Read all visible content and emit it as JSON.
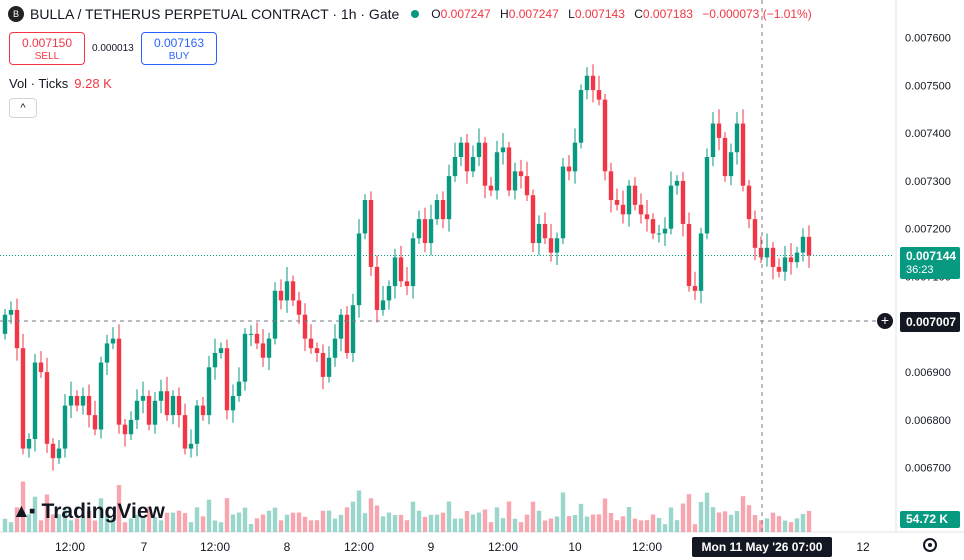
{
  "header": {
    "symbol_logo": "B",
    "title": "BULLA / TETHERUS PERPETUAL CONTRACT · 1h · Gate",
    "ohlc": [
      {
        "k": "O",
        "v": "0.007247"
      },
      {
        "k": "H",
        "v": "0.007247"
      },
      {
        "k": "L",
        "v": "0.007143"
      },
      {
        "k": "C",
        "v": "0.007183"
      }
    ],
    "change": "−0.000073 (−1.01%)"
  },
  "trade": {
    "sell_price": "0.007150",
    "sell_label": "SELL",
    "spread": "0.000013",
    "buy_price": "0.007163",
    "buy_label": "BUY"
  },
  "volume_legend": {
    "label": "Vol · Ticks",
    "value": "9.28 K"
  },
  "collapse_icon": "^",
  "branding": {
    "mark": "▲▪",
    "name": "TradingView"
  },
  "price_scale": {
    "ticks": [
      "0.007600",
      "0.007500",
      "0.007400",
      "0.007300",
      "0.007200",
      "0.007100",
      "0.006900",
      "0.006800",
      "0.006700"
    ],
    "last_price": "0.007144",
    "countdown": "36:23",
    "crosshair_price": "0.007007",
    "volume_last": "54.72 K"
  },
  "time_scale": {
    "ticks": [
      "12:00",
      "7",
      "12:00",
      "8",
      "12:00",
      "9",
      "12:00",
      "10",
      "12:00",
      "12"
    ],
    "crosshair_time": "Mon 11 May '26  07:00"
  },
  "colors": {
    "up": "#089981",
    "down": "#f23645",
    "up_volume": "#9bd6cd",
    "down_volume": "#f7a5ae"
  },
  "chart_data": {
    "type": "candlestick",
    "title": "BULLA / TETHERUS PERPETUAL CONTRACT",
    "interval": "1h",
    "exchange": "Gate",
    "ylim": [
      0.00663,
      0.00763
    ],
    "y_ticks": [
      0.0076,
      0.0075,
      0.0074,
      0.0073,
      0.0072,
      0.0071,
      0.0069,
      0.0068,
      0.0067
    ],
    "last_price": 0.007144,
    "crosshair": {
      "price": 0.007007,
      "time": "Mon 11 May '26 07:00"
    },
    "candles_close": [
      0.00702,
      0.00703,
      0.00695,
      0.00674,
      0.00676,
      0.00692,
      0.0069,
      0.00675,
      0.00672,
      0.00674,
      0.00683,
      0.00685,
      0.00683,
      0.00685,
      0.00681,
      0.00678,
      0.00692,
      0.00696,
      0.00697,
      0.00679,
      0.00677,
      0.0068,
      0.00684,
      0.00685,
      0.00679,
      0.00684,
      0.00686,
      0.00681,
      0.00685,
      0.00681,
      0.00674,
      0.00675,
      0.00683,
      0.00681,
      0.00691,
      0.00694,
      0.00695,
      0.00682,
      0.00685,
      0.00688,
      0.00698,
      0.00698,
      0.00696,
      0.00693,
      0.00697,
      0.00707,
      0.00705,
      0.00709,
      0.00705,
      0.00702,
      0.00697,
      0.00695,
      0.00694,
      0.00689,
      0.00693,
      0.00697,
      0.00702,
      0.00694,
      0.00704,
      0.00719,
      0.00726,
      0.00712,
      0.00703,
      0.00705,
      0.00708,
      0.00714,
      0.00709,
      0.00708,
      0.00718,
      0.00722,
      0.00717,
      0.00722,
      0.00726,
      0.00722,
      0.00731,
      0.00735,
      0.00738,
      0.00732,
      0.00735,
      0.00738,
      0.00729,
      0.00728,
      0.00736,
      0.00737,
      0.00728,
      0.00732,
      0.00731,
      0.00727,
      0.00717,
      0.00721,
      0.00718,
      0.00715,
      0.00718,
      0.00733,
      0.00732,
      0.00738,
      0.00749,
      0.00752,
      0.00749,
      0.00747,
      0.00732,
      0.00726,
      0.00725,
      0.00723,
      0.00729,
      0.00725,
      0.00723,
      0.00722,
      0.00719,
      0.00719,
      0.0072,
      0.00729,
      0.0073,
      0.00721,
      0.00708,
      0.00707,
      0.00719,
      0.00735,
      0.00742,
      0.00739,
      0.00731,
      0.00736,
      0.00742,
      0.00729,
      0.00722,
      0.00716,
      0.00714,
      0.00716,
      0.00712,
      0.00711,
      0.00714,
      0.00713,
      0.00715,
      0.007183,
      0.007144
    ]
  }
}
